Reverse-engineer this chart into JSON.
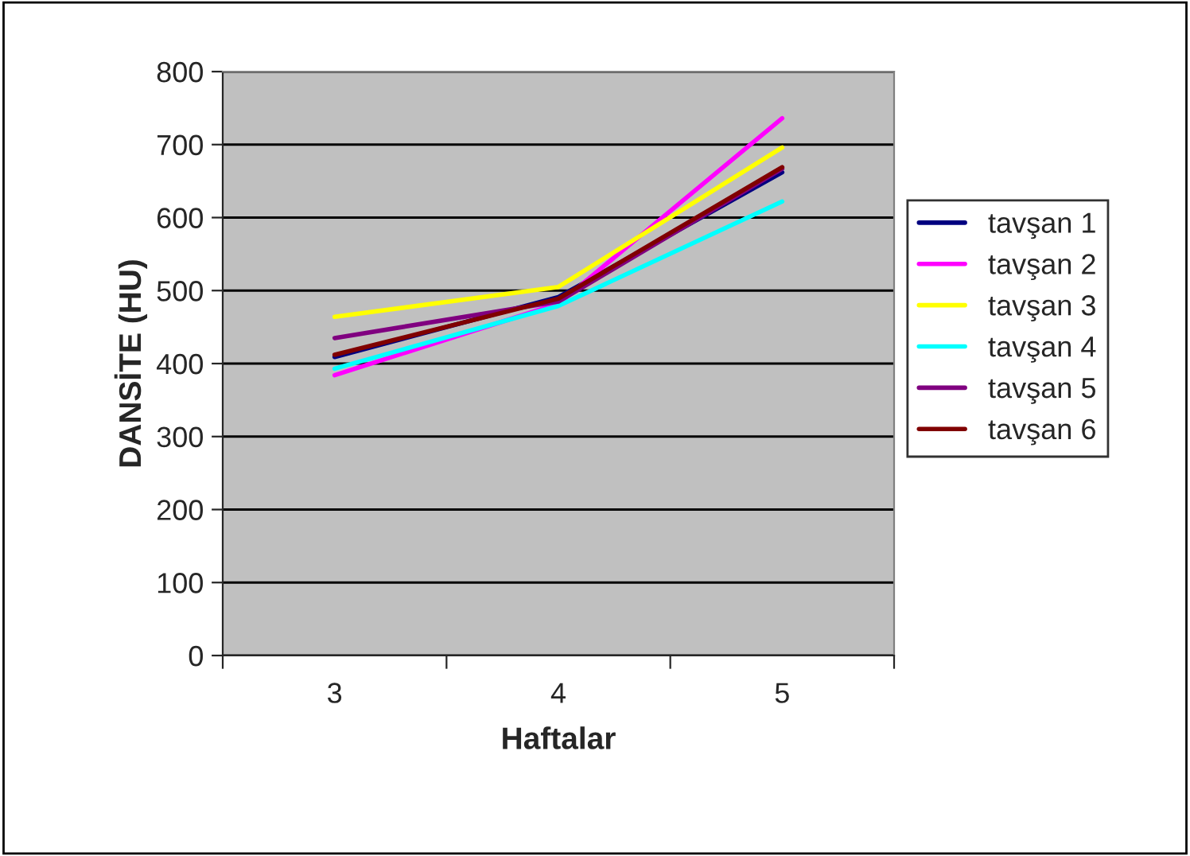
{
  "chart_data": {
    "type": "line",
    "xlabel": "Haftalar",
    "ylabel": "DANSİTE (HU)",
    "categories": [
      "3",
      "4",
      "5"
    ],
    "series": [
      {
        "name": "tavşan 1",
        "color": "#000080",
        "values": [
          409,
          491,
          662
        ]
      },
      {
        "name": "tavşan 2",
        "color": "#ff00ff",
        "values": [
          384,
          482,
          736
        ]
      },
      {
        "name": "tavşan 3",
        "color": "#ffff00",
        "values": [
          464,
          505,
          696
        ]
      },
      {
        "name": "tavşan 4",
        "color": "#00ffff",
        "values": [
          393,
          479,
          622
        ]
      },
      {
        "name": "tavşan 5",
        "color": "#800080",
        "values": [
          435,
          485,
          667
        ]
      },
      {
        "name": "tavşan 6",
        "color": "#800000",
        "values": [
          412,
          489,
          669
        ]
      }
    ],
    "ylim": [
      0,
      800
    ],
    "yticks": [
      0,
      100,
      200,
      300,
      400,
      500,
      600,
      700,
      800
    ],
    "grid": "y",
    "legend": "right",
    "marker": "none",
    "line_style": "solid"
  }
}
